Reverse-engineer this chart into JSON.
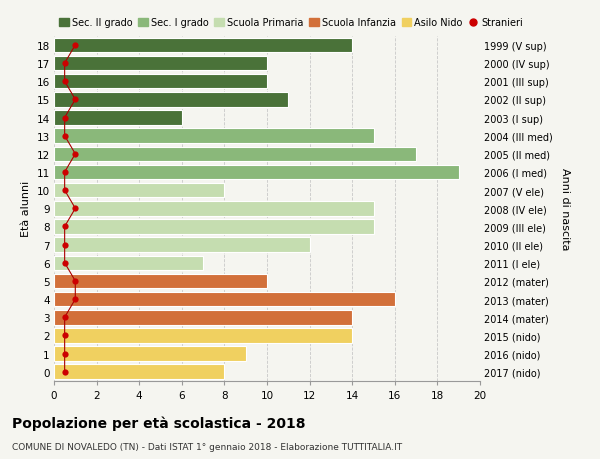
{
  "ages": [
    18,
    17,
    16,
    15,
    14,
    13,
    12,
    11,
    10,
    9,
    8,
    7,
    6,
    5,
    4,
    3,
    2,
    1,
    0
  ],
  "right_labels": [
    "1999 (V sup)",
    "2000 (IV sup)",
    "2001 (III sup)",
    "2002 (II sup)",
    "2003 (I sup)",
    "2004 (III med)",
    "2005 (II med)",
    "2006 (I med)",
    "2007 (V ele)",
    "2008 (IV ele)",
    "2009 (III ele)",
    "2010 (II ele)",
    "2011 (I ele)",
    "2012 (mater)",
    "2013 (mater)",
    "2014 (mater)",
    "2015 (nido)",
    "2016 (nido)",
    "2017 (nido)"
  ],
  "bar_values": [
    14,
    10,
    10,
    11,
    6,
    15,
    17,
    19,
    8,
    15,
    15,
    12,
    7,
    10,
    16,
    14,
    14,
    9,
    8
  ],
  "bar_colors": [
    "#4a7239",
    "#4a7239",
    "#4a7239",
    "#4a7239",
    "#4a7239",
    "#8ab87a",
    "#8ab87a",
    "#8ab87a",
    "#c5ddb0",
    "#c5ddb0",
    "#c5ddb0",
    "#c5ddb0",
    "#c5ddb0",
    "#d2703a",
    "#d2703a",
    "#d2703a",
    "#f0d060",
    "#f0d060",
    "#f0d060"
  ],
  "stranieri_x": [
    1,
    0.5,
    0.5,
    1,
    0.5,
    0.5,
    1,
    0.5,
    0.5,
    1,
    0.5,
    0.5,
    0.5,
    1,
    1,
    0.5,
    0.5,
    0.5,
    0.5
  ],
  "legend_labels": [
    "Sec. II grado",
    "Sec. I grado",
    "Scuola Primaria",
    "Scuola Infanzia",
    "Asilo Nido",
    "Stranieri"
  ],
  "legend_colors": [
    "#4a7239",
    "#8ab87a",
    "#c5ddb0",
    "#d2703a",
    "#f0d060",
    "#cc0000"
  ],
  "xlabel_right": "Anni di nascita",
  "ylabel": "Età alunni",
  "title_bold": "Popolazione per età scolastica - 2018",
  "subtitle": "COMUNE DI NOVALEDO (TN) - Dati ISTAT 1° gennaio 2018 - Elaborazione TUTTITALIA.IT",
  "xlim": [
    0,
    20
  ],
  "background_color": "#f5f5f0",
  "grid_color": "#c8c8c8"
}
